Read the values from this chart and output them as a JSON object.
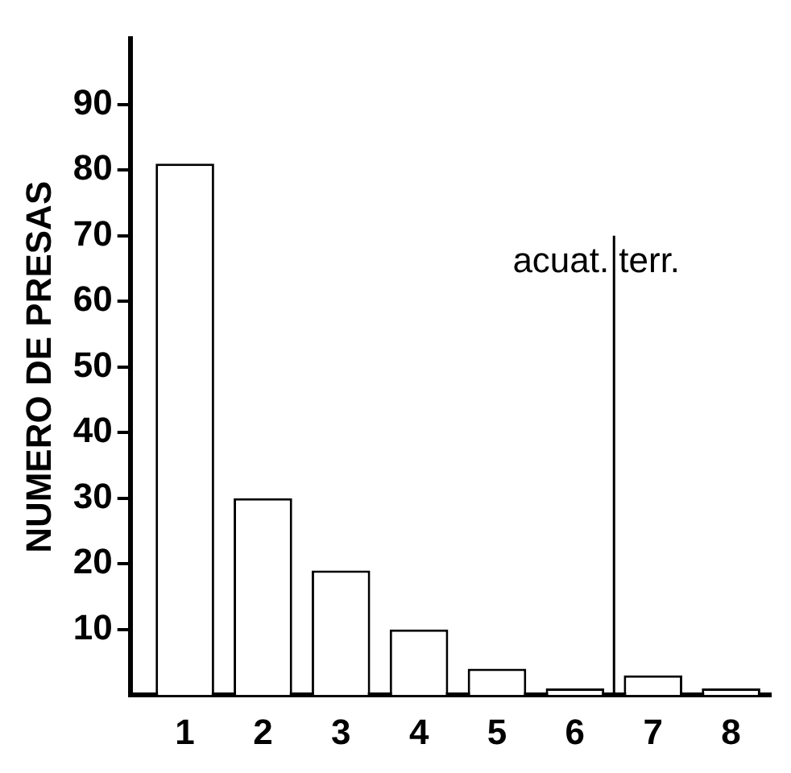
{
  "chart_data": {
    "type": "bar",
    "ylabel": "NUMERO DE PRESAS",
    "x": [
      1,
      2,
      3,
      4,
      5,
      6,
      7,
      8
    ],
    "values": [
      81,
      30,
      19,
      10,
      4,
      1,
      3,
      1
    ],
    "color": "#ffffff",
    "xlim": [
      0.3,
      8.5
    ],
    "xticks": [
      1,
      2,
      3,
      4,
      5,
      6,
      7,
      8
    ],
    "ylim": [
      0,
      100
    ],
    "yticks": [
      10,
      20,
      30,
      40,
      50,
      60,
      70,
      80,
      90
    ],
    "grid": false,
    "ref_lines": [
      {
        "axis": "x",
        "value": 6.5,
        "color": "#000000"
      }
    ],
    "annotations": [
      {
        "text": "acuat.",
        "x": 6.5,
        "y": 66
      },
      {
        "text": "terr.",
        "x": 6.5,
        "y": 66
      }
    ]
  }
}
